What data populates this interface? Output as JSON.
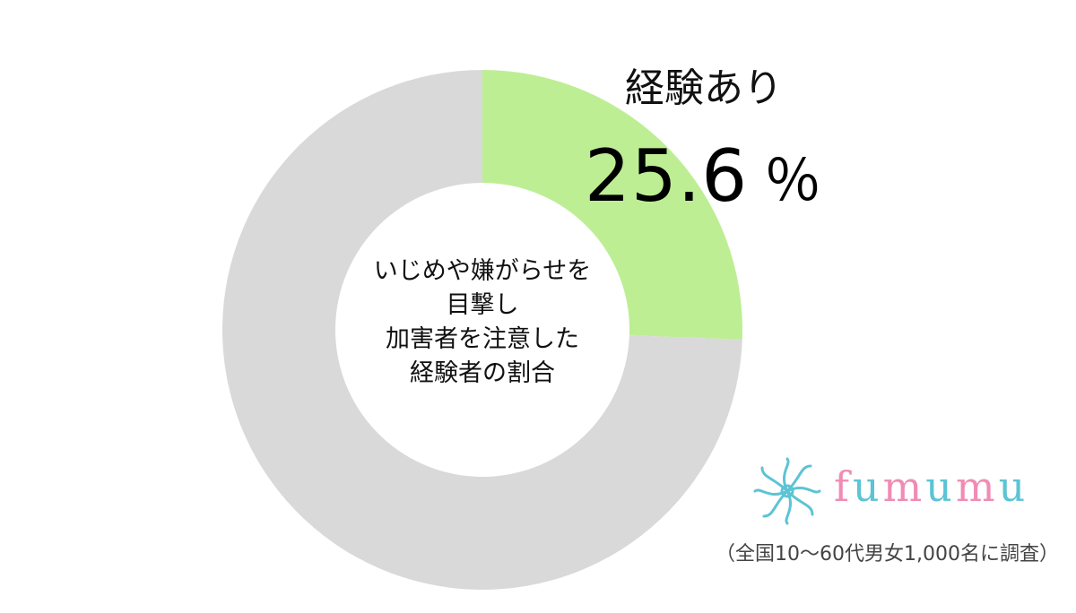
{
  "chart_data": {
    "type": "pie",
    "donut": true,
    "center_label": [
      "いじめや嫌がらせを",
      "目撃し",
      "加害者を注意した",
      "経験者の割合"
    ],
    "slices": [
      {
        "label": "経験あり",
        "value": 25.6,
        "color": "#bdee94"
      },
      {
        "value": 74.4,
        "color": "#d9d9d9"
      }
    ],
    "value_text": "25.6",
    "unit": "％"
  },
  "logo": {
    "text": "fumumu",
    "colors": {
      "pink": "#f08cb4",
      "blue": "#5cc4d4"
    }
  },
  "footnote": "（全国10～60代男女1,000名に調査）"
}
